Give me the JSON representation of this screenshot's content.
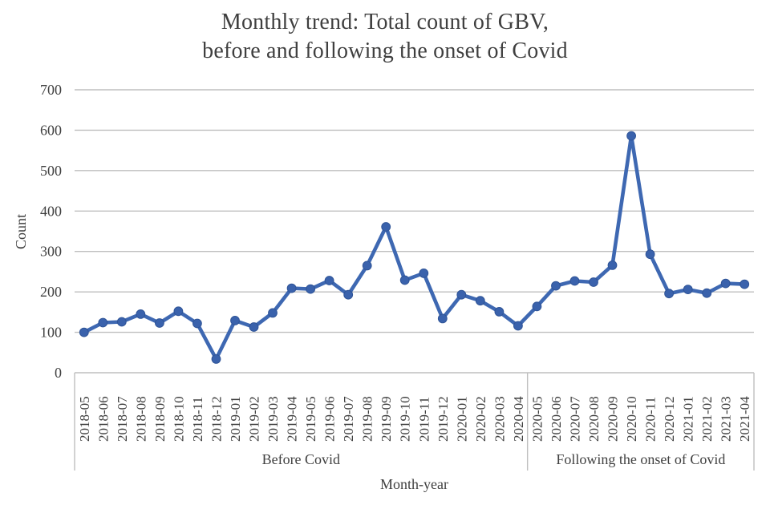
{
  "title": {
    "line1": "Monthly trend: Total count of GBV,",
    "line2": "before and following the onset of Covid"
  },
  "chart_data": {
    "type": "line",
    "title": "Monthly trend: Total count of GBV, before and following the onset of Covid",
    "xlabel": "Month-year",
    "ylabel": "Count",
    "ylim": [
      0,
      700
    ],
    "yticks": [
      0,
      100,
      200,
      300,
      400,
      500,
      600,
      700
    ],
    "grid": true,
    "legend": "none",
    "x": [
      "2018-05",
      "2018-06",
      "2018-07",
      "2018-08",
      "2018-09",
      "2018-10",
      "2018-11",
      "2018-12",
      "2019-01",
      "2019-02",
      "2019-03",
      "2019-04",
      "2019-05",
      "2019-06",
      "2019-07",
      "2019-08",
      "2019-09",
      "2019-10",
      "2019-11",
      "2019-12",
      "2020-01",
      "2020-02",
      "2020-03",
      "2020-04",
      "2020-05",
      "2020-06",
      "2020-07",
      "2020-08",
      "2020-09",
      "2020-10",
      "2020-11",
      "2020-12",
      "2021-01",
      "2021-02",
      "2021-03",
      "2021-04"
    ],
    "values": [
      100,
      124,
      126,
      145,
      123,
      152,
      122,
      34,
      129,
      113,
      148,
      209,
      207,
      228,
      193,
      265,
      361,
      229,
      246,
      134,
      193,
      178,
      151,
      116,
      164,
      215,
      227,
      224,
      266,
      586,
      293,
      196,
      206,
      197,
      221,
      219
    ],
    "groups": [
      {
        "label": "Before Covid",
        "start": 0,
        "end": 23
      },
      {
        "label": "Following the onset of Covid",
        "start": 24,
        "end": 35
      }
    ],
    "colors": {
      "line": "#3e68b2",
      "marker": "#3a62ac",
      "marker_edge": "#2f5497",
      "grid": "#bfbfbf",
      "axis_box": "#bfbfbf",
      "text": "#404040",
      "title": "#3f3f3f",
      "background": "#ffffff"
    }
  }
}
